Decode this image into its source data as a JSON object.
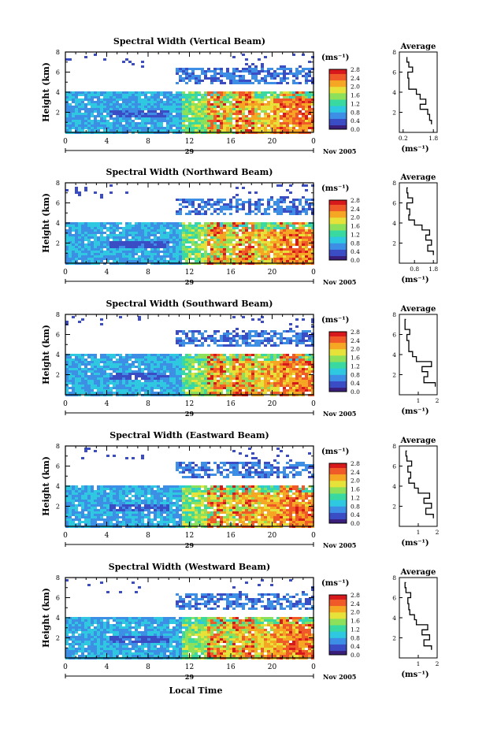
{
  "figure": {
    "xlabel": "Local Time",
    "colormap": [
      "#3a1f7a",
      "#3b4dc4",
      "#3d8fe6",
      "#2ec9e0",
      "#39d9a0",
      "#8de05a",
      "#e6e23a",
      "#f5a623",
      "#f05a28",
      "#d7191c"
    ]
  },
  "chart_data": [
    {
      "type": "heatmap",
      "title": "Spectral Width (Vertical Beam)",
      "ylabel": "Height (km)",
      "ylim": [
        0,
        8
      ],
      "yticks": [
        "2",
        "4",
        "6",
        "8"
      ],
      "xlim": [
        0,
        24
      ],
      "xticks": [
        "0",
        "4",
        "8",
        "12",
        "16",
        "20",
        "0"
      ],
      "date_tick": "29",
      "date_label": "Nov 2005",
      "colorbar": {
        "unit": "(ms⁻¹)",
        "ticks": [
          "0.0",
          "0.4",
          "0.8",
          "1.2",
          "1.6",
          "2.0",
          "2.4",
          "2.8"
        ],
        "range": [
          0.0,
          2.8
        ]
      },
      "profile": {
        "title": "Average",
        "xlabel": "(ms⁻¹)",
        "xticks": [
          "0.2",
          "1.8"
        ],
        "xlim": [
          0,
          2
        ],
        "yticks": [
          "2",
          "4",
          "6",
          "8"
        ],
        "ylim": [
          0,
          8
        ],
        "heights": [
          0.8,
          1.2,
          1.8,
          2.3,
          2.8,
          3.3,
          3.8,
          4.3,
          4.8,
          5.4,
          6.0,
          6.5,
          7.0,
          7.5
        ],
        "values": [
          1.7,
          1.6,
          1.5,
          1.1,
          1.4,
          1.1,
          0.9,
          0.5,
          0.5,
          0.45,
          0.7,
          0.5,
          0.4,
          0.4
        ]
      }
    },
    {
      "type": "heatmap",
      "title": "Spectral Width (Northward Beam)",
      "ylabel": "Height (km)",
      "ylim": [
        0,
        8
      ],
      "yticks": [
        "2",
        "4",
        "6",
        "8"
      ],
      "xlim": [
        0,
        24
      ],
      "xticks": [
        "0",
        "4",
        "8",
        "12",
        "16",
        "20",
        "0"
      ],
      "date_tick": "29",
      "date_label": "Nov 2005",
      "colorbar": {
        "unit": "(ms⁻¹)",
        "ticks": [
          "0.0",
          "0.4",
          "0.8",
          "1.2",
          "1.6",
          "2.0",
          "2.4",
          "2.8"
        ],
        "range": [
          0.0,
          2.8
        ]
      },
      "profile": {
        "title": "Average",
        "xlabel": "(ms⁻¹)",
        "xticks": [
          "0.8",
          "1.8"
        ],
        "xlim": [
          0,
          2
        ],
        "yticks": [
          "2",
          "4",
          "6",
          "8"
        ],
        "ylim": [
          0,
          8
        ],
        "heights": [
          0.8,
          1.2,
          1.8,
          2.3,
          2.8,
          3.3,
          3.8,
          4.3,
          4.8,
          5.4,
          6.0,
          6.5,
          7.0,
          7.5
        ],
        "values": [
          1.8,
          1.5,
          1.7,
          1.4,
          1.6,
          1.2,
          0.8,
          0.5,
          0.55,
          0.4,
          0.7,
          0.45,
          0.4,
          0.45
        ]
      }
    },
    {
      "type": "heatmap",
      "title": "Spectral Width (Southward Beam)",
      "ylabel": "Height (km)",
      "ylim": [
        0,
        8
      ],
      "yticks": [
        "2",
        "4",
        "6",
        "8"
      ],
      "xlim": [
        0,
        24
      ],
      "xticks": [
        "0",
        "4",
        "8",
        "12",
        "16",
        "20",
        "0"
      ],
      "date_tick": "29",
      "date_label": "Nov 2005",
      "colorbar": {
        "unit": "(ms⁻¹)",
        "ticks": [
          "0.0",
          "0.4",
          "0.8",
          "1.2",
          "1.6",
          "2.0",
          "2.4",
          "2.8"
        ],
        "range": [
          0.0,
          2.8
        ]
      },
      "profile": {
        "title": "Average",
        "xlabel": "(ms⁻¹)",
        "xticks": [
          "1",
          "2"
        ],
        "xlim": [
          0,
          2
        ],
        "yticks": [
          "2",
          "4",
          "6",
          "8"
        ],
        "ylim": [
          0,
          8
        ],
        "heights": [
          0.8,
          1.2,
          1.8,
          2.3,
          2.8,
          3.3,
          3.8,
          4.3,
          4.8,
          5.4,
          6.0,
          6.5,
          7.0,
          7.5
        ],
        "values": [
          1.9,
          1.3,
          1.5,
          1.2,
          1.7,
          0.9,
          0.7,
          0.5,
          0.5,
          0.4,
          0.55,
          0.3,
          0.3,
          0.35
        ]
      }
    },
    {
      "type": "heatmap",
      "title": "Spectral Width (Eastward Beam)",
      "ylabel": "Height (km)",
      "ylim": [
        0,
        8
      ],
      "yticks": [
        "2",
        "4",
        "6",
        "8"
      ],
      "xlim": [
        0,
        24
      ],
      "xticks": [
        "0",
        "4",
        "8",
        "12",
        "16",
        "20",
        "0"
      ],
      "date_tick": "29",
      "date_label": "Nov 2005",
      "colorbar": {
        "unit": "(ms⁻¹)",
        "ticks": [
          "0.0",
          "0.4",
          "0.8",
          "1.2",
          "1.6",
          "2.0",
          "2.4",
          "2.8"
        ],
        "range": [
          0.0,
          2.8
        ]
      },
      "profile": {
        "title": "Average",
        "xlabel": "(ms⁻¹)",
        "xticks": [
          "1",
          "2"
        ],
        "xlim": [
          0,
          2
        ],
        "yticks": [
          "2",
          "4",
          "6",
          "8"
        ],
        "ylim": [
          0,
          8
        ],
        "heights": [
          0.8,
          1.2,
          1.8,
          2.3,
          2.8,
          3.3,
          3.8,
          4.3,
          4.8,
          5.4,
          6.0,
          6.5,
          7.0,
          7.5
        ],
        "values": [
          1.8,
          1.4,
          1.7,
          1.3,
          1.6,
          1.0,
          0.8,
          0.5,
          0.6,
          0.45,
          0.65,
          0.4,
          0.35,
          0.4
        ]
      }
    },
    {
      "type": "heatmap",
      "title": "Spectral Width (Westward Beam)",
      "ylabel": "Height (km)",
      "ylim": [
        0,
        8
      ],
      "yticks": [
        "2",
        "4",
        "6",
        "8"
      ],
      "xlim": [
        0,
        24
      ],
      "xticks": [
        "0",
        "4",
        "8",
        "12",
        "16",
        "20",
        "0"
      ],
      "date_tick": "29",
      "date_label": "Nov 2005",
      "colorbar": {
        "unit": "(ms⁻¹)",
        "ticks": [
          "0.0",
          "0.4",
          "0.8",
          "1.2",
          "1.6",
          "2.0",
          "2.4",
          "2.8"
        ],
        "range": [
          0.0,
          2.8
        ]
      },
      "profile": {
        "title": "Average",
        "xlabel": "(ms⁻¹)",
        "xticks": [
          "1",
          "2"
        ],
        "xlim": [
          0,
          2
        ],
        "yticks": [
          "2",
          "4",
          "6",
          "8"
        ],
        "ylim": [
          0,
          8
        ],
        "heights": [
          0.8,
          1.2,
          1.8,
          2.3,
          2.8,
          3.3,
          3.8,
          4.3,
          4.8,
          5.4,
          6.0,
          6.5,
          7.0,
          7.5
        ],
        "values": [
          1.7,
          1.3,
          1.6,
          1.2,
          1.5,
          0.9,
          0.8,
          0.55,
          0.5,
          0.45,
          0.6,
          0.35,
          0.3,
          0.35
        ]
      }
    }
  ]
}
